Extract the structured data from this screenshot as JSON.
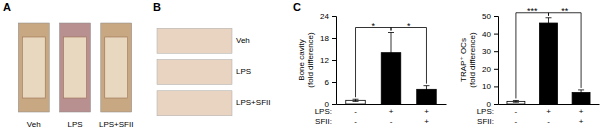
{
  "chart_data": [
    {
      "type": "image",
      "title": "A",
      "categories": [
        "Veh",
        "LPS",
        "LPS+SFII"
      ],
      "colors": [
        "#c8a882",
        "#b89090",
        "#c8a882"
      ]
    },
    {
      "type": "image",
      "title": "B",
      "categories": [
        "Veh",
        "LPS",
        "LPS+SFII"
      ],
      "color": "#e8d4c0",
      "orientation": "horizontal"
    },
    {
      "type": "bar",
      "title": "C",
      "ylabel": "Bone cavity\n(fold difference)",
      "xlabel": [
        "LPS:",
        "SFII:"
      ],
      "categories": [
        [
          "-",
          "-"
        ],
        [
          "+",
          "-"
        ],
        [
          "+",
          "+"
        ]
      ],
      "values": [
        1.0,
        14.0,
        4.0
      ],
      "errors": [
        0.3,
        5.5,
        1.0
      ],
      "colors": [
        "white",
        "black",
        "black"
      ],
      "ylim": [
        0,
        24
      ],
      "yticks": [
        0,
        6,
        12,
        18,
        24
      ],
      "annotations": [
        "*",
        "*"
      ]
    },
    {
      "type": "bar",
      "ylabel": "TRAP⁺ OCs\n(fold difference)",
      "xlabel": [
        "LPS:",
        "SFII:"
      ],
      "categories": [
        [
          "-",
          "-"
        ],
        [
          "+",
          "-"
        ],
        [
          "+",
          "+"
        ]
      ],
      "values": [
        1.5,
        46.0,
        6.5
      ],
      "errors": [
        0.5,
        3.0,
        1.5
      ],
      "colors": [
        "white",
        "black",
        "black"
      ],
      "ylim": [
        0,
        50
      ],
      "yticks": [
        0,
        10,
        20,
        30,
        40,
        50
      ],
      "annotations": [
        "***",
        "**"
      ]
    }
  ]
}
